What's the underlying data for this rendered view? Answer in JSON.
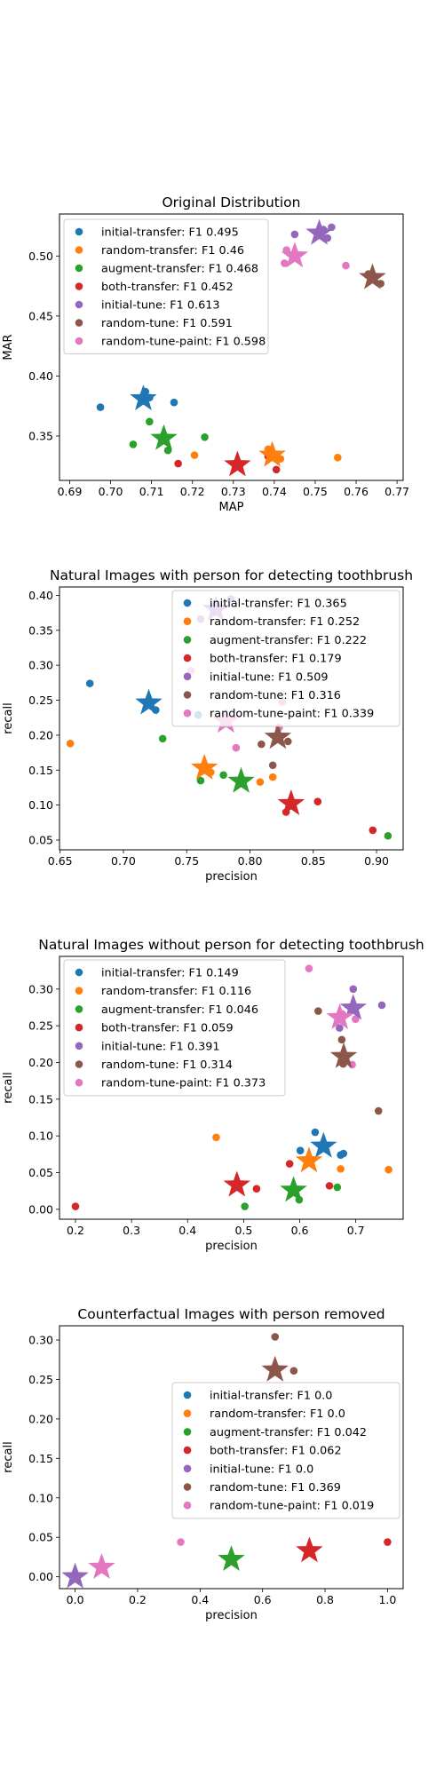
{
  "colors": {
    "initial-transfer": "#1f77b4",
    "random-transfer": "#ff7f0e",
    "augment-transfer": "#2ca02c",
    "both-transfer": "#d62728",
    "initial-tune": "#9467bd",
    "random-tune": "#8c564b",
    "random-tune-paint": "#e377c2"
  },
  "chart_data": [
    {
      "type": "scatter",
      "title": "Original Distribution",
      "xlabel": "MAP",
      "ylabel": "MAR",
      "xlim": [
        0.6875,
        0.7715
      ],
      "ylim": [
        0.313,
        0.535
      ],
      "xticks": [
        "0.69",
        "0.70",
        "0.71",
        "0.72",
        "0.73",
        "0.74",
        "0.75",
        "0.76",
        "0.77"
      ],
      "xtick_values": [
        0.69,
        0.7,
        0.71,
        0.72,
        0.73,
        0.74,
        0.75,
        0.76,
        0.77
      ],
      "yticks": [
        "0.35",
        "0.40",
        "0.45",
        "0.50"
      ],
      "ytick_values": [
        0.35,
        0.4,
        0.45,
        0.5
      ],
      "legend_position": "upper-left",
      "series": [
        {
          "name": "initial-transfer",
          "legend": "initial-transfer: F1 0.495",
          "points": [
            [
              0.6975,
              0.374
            ],
            [
              0.7085,
              0.387
            ],
            [
              0.7095,
              0.382
            ],
            [
              0.7155,
              0.378
            ]
          ],
          "star": [
            0.708,
            0.381
          ]
        },
        {
          "name": "random-transfer",
          "legend": "random-transfer: F1 0.46",
          "points": [
            [
              0.7205,
              0.334
            ],
            [
              0.7385,
              0.339
            ],
            [
              0.7415,
              0.331
            ],
            [
              0.7555,
              0.332
            ]
          ],
          "star": [
            0.7395,
            0.334
          ]
        },
        {
          "name": "augment-transfer",
          "legend": "augment-transfer: F1 0.468",
          "points": [
            [
              0.7055,
              0.343
            ],
            [
              0.7095,
              0.362
            ],
            [
              0.714,
              0.338
            ],
            [
              0.723,
              0.349
            ]
          ],
          "star": [
            0.713,
            0.348
          ]
        },
        {
          "name": "both-transfer",
          "legend": "both-transfer: F1 0.452",
          "points": [
            [
              0.7165,
              0.327
            ],
            [
              0.7385,
              0.333
            ],
            [
              0.7405,
              0.322
            ]
          ],
          "star": [
            0.731,
            0.326
          ]
        },
        {
          "name": "initial-tune",
          "legend": "initial-tune: F1 0.613",
          "points": [
            [
              0.745,
              0.518
            ],
            [
              0.752,
              0.522
            ],
            [
              0.753,
              0.515
            ],
            [
              0.754,
              0.524
            ]
          ],
          "star": [
            0.751,
            0.519
          ]
        },
        {
          "name": "random-tune",
          "legend": "random-tune: F1 0.591",
          "points": [
            [
              0.763,
              0.485
            ],
            [
              0.766,
              0.477
            ]
          ],
          "star": [
            0.764,
            0.482
          ]
        },
        {
          "name": "random-tune-paint",
          "legend": "random-tune-paint: F1 0.598",
          "points": [
            [
              0.7425,
              0.494
            ],
            [
              0.743,
              0.505
            ],
            [
              0.7575,
              0.492
            ]
          ],
          "star": [
            0.745,
            0.5
          ]
        }
      ]
    },
    {
      "type": "scatter",
      "title": "Natural Images with person for detecting toothbrush",
      "xlabel": "precision",
      "ylabel": "recall",
      "xlim": [
        0.6495,
        0.921
      ],
      "ylim": [
        0.036,
        0.412
      ],
      "xticks": [
        "0.65",
        "0.70",
        "0.75",
        "0.80",
        "0.85",
        "0.90"
      ],
      "xtick_values": [
        0.65,
        0.7,
        0.75,
        0.8,
        0.85,
        0.9
      ],
      "yticks": [
        "0.05",
        "0.10",
        "0.15",
        "0.20",
        "0.25",
        "0.30",
        "0.35",
        "0.40"
      ],
      "ytick_values": [
        0.05,
        0.1,
        0.15,
        0.2,
        0.25,
        0.3,
        0.35,
        0.4
      ],
      "legend_position": "upper-right",
      "series": [
        {
          "name": "initial-transfer",
          "legend": "initial-transfer: F1 0.365",
          "points": [
            [
              0.6735,
              0.274
            ],
            [
              0.7255,
              0.236
            ],
            [
              0.759,
              0.229
            ]
          ],
          "star": [
            0.72,
            0.246
          ]
        },
        {
          "name": "random-transfer",
          "legend": "random-transfer: F1 0.252",
          "points": [
            [
              0.658,
              0.188
            ],
            [
              0.769,
              0.147
            ],
            [
              0.808,
              0.133
            ],
            [
              0.818,
              0.14
            ]
          ],
          "star": [
            0.764,
            0.153
          ]
        },
        {
          "name": "augment-transfer",
          "legend": "augment-transfer: F1 0.222",
          "points": [
            [
              0.731,
              0.195
            ],
            [
              0.761,
              0.135
            ],
            [
              0.779,
              0.143
            ],
            [
              0.909,
              0.056
            ]
          ],
          "star": [
            0.793,
            0.134
          ]
        },
        {
          "name": "both-transfer",
          "legend": "both-transfer: F1 0.179",
          "points": [
            [
              0.8285,
              0.09
            ],
            [
              0.8535,
              0.105
            ],
            [
              0.897,
              0.064
            ]
          ],
          "star": [
            0.8325,
            0.102
          ]
        },
        {
          "name": "initial-tune",
          "legend": "initial-tune: F1 0.509",
          "points": [
            [
              0.761,
              0.366
            ],
            [
              0.775,
              0.38
            ],
            [
              0.785,
              0.395
            ]
          ],
          "star": [
            0.773,
            0.38
          ]
        },
        {
          "name": "random-tune",
          "legend": "random-tune: F1 0.316",
          "points": [
            [
              0.809,
              0.187
            ],
            [
              0.818,
              0.157
            ],
            [
              0.83,
              0.191
            ]
          ],
          "star": [
            0.822,
            0.197
          ]
        },
        {
          "name": "random-tune-paint",
          "legend": "random-tune-paint: F1 0.339",
          "points": [
            [
              0.7535,
              0.292
            ],
            [
              0.789,
              0.182
            ],
            [
              0.823,
              0.211
            ],
            [
              0.8255,
              0.247
            ]
          ],
          "star": [
            0.781,
            0.22
          ]
        }
      ]
    },
    {
      "type": "scatter",
      "title": "Natural Images without person for detecting toothbrush",
      "xlabel": "precision",
      "ylabel": "recall",
      "xlim": [
        0.1715,
        0.7845
      ],
      "ylim": [
        -0.0135,
        0.3445
      ],
      "xticks": [
        "0.2",
        "0.3",
        "0.4",
        "0.5",
        "0.6",
        "0.7"
      ],
      "xtick_values": [
        0.2,
        0.3,
        0.4,
        0.5,
        0.6,
        0.7
      ],
      "yticks": [
        "0.00",
        "0.05",
        "0.10",
        "0.15",
        "0.20",
        "0.25",
        "0.30"
      ],
      "ytick_values": [
        0.0,
        0.05,
        0.1,
        0.15,
        0.2,
        0.25,
        0.3
      ],
      "legend_position": "upper-left",
      "series": [
        {
          "name": "initial-transfer",
          "legend": "initial-transfer: F1 0.149",
          "points": [
            [
              0.601,
              0.08
            ],
            [
              0.6275,
              0.105
            ],
            [
              0.673,
              0.074
            ],
            [
              0.678,
              0.076
            ]
          ],
          "star": [
            0.6425,
            0.086
          ]
        },
        {
          "name": "random-transfer",
          "legend": "random-transfer: F1 0.116",
          "points": [
            [
              0.451,
              0.098
            ],
            [
              0.673,
              0.055
            ],
            [
              0.7585,
              0.054
            ]
          ],
          "star": [
            0.6165,
            0.066
          ]
        },
        {
          "name": "augment-transfer",
          "legend": "augment-transfer: F1 0.046",
          "points": [
            [
              0.502,
              0.004
            ],
            [
              0.599,
              0.013
            ],
            [
              0.667,
              0.03
            ]
          ],
          "star": [
            0.589,
            0.026
          ]
        },
        {
          "name": "both-transfer",
          "legend": "both-transfer: F1 0.059",
          "points": [
            [
              0.2,
              0.004
            ],
            [
              0.523,
              0.028
            ],
            [
              0.582,
              0.062
            ],
            [
              0.653,
              0.032
            ]
          ],
          "star": [
            0.488,
            0.033
          ]
        },
        {
          "name": "initial-tune",
          "legend": "initial-tune: F1 0.391",
          "points": [
            [
              0.671,
              0.247
            ],
            [
              0.6955,
              0.3
            ],
            [
              0.7465,
              0.278
            ]
          ],
          "star": [
            0.6955,
            0.274
          ]
        },
        {
          "name": "random-tune",
          "legend": "random-tune: F1 0.314",
          "points": [
            [
              0.633,
              0.27
            ],
            [
              0.675,
              0.231
            ],
            [
              0.6775,
              0.198
            ],
            [
              0.7405,
              0.134
            ]
          ],
          "star": [
            0.6785,
            0.208
          ]
        },
        {
          "name": "random-tune-paint",
          "legend": "random-tune-paint: F1 0.373",
          "points": [
            [
              0.6165,
              0.328
            ],
            [
              0.676,
              0.266
            ],
            [
              0.6935,
              0.197
            ],
            [
              0.6995,
              0.259
            ]
          ],
          "star": [
            0.6715,
            0.261
          ]
        }
      ]
    },
    {
      "type": "scatter",
      "title": "Counterfactual Images with person removed",
      "xlabel": "precision",
      "ylabel": "recall",
      "xlim": [
        -0.05,
        1.05
      ],
      "ylim": [
        -0.015,
        0.318
      ],
      "xticks": [
        "0.0",
        "0.2",
        "0.4",
        "0.6",
        "0.8",
        "1.0"
      ],
      "xtick_values": [
        0.0,
        0.2,
        0.4,
        0.6,
        0.8,
        1.0
      ],
      "yticks": [
        "0.00",
        "0.05",
        "0.10",
        "0.15",
        "0.20",
        "0.25",
        "0.30"
      ],
      "ytick_values": [
        0.0,
        0.05,
        0.1,
        0.15,
        0.2,
        0.25,
        0.3
      ],
      "legend_position": "center-right",
      "series": [
        {
          "name": "initial-transfer",
          "legend": "initial-transfer: F1 0.0",
          "points": [],
          "star": null
        },
        {
          "name": "random-transfer",
          "legend": "random-transfer: F1 0.0",
          "points": [],
          "star": null
        },
        {
          "name": "augment-transfer",
          "legend": "augment-transfer: F1 0.042",
          "points": [],
          "star": [
            0.5,
            0.022
          ]
        },
        {
          "name": "both-transfer",
          "legend": "both-transfer: F1 0.062",
          "points": [
            [
              1.0,
              0.044
            ]
          ],
          "star": [
            0.75,
            0.033
          ]
        },
        {
          "name": "initial-tune",
          "legend": "initial-tune: F1 0.0",
          "points": [],
          "star": [
            0.0,
            0.0
          ]
        },
        {
          "name": "random-tune",
          "legend": "random-tune: F1 0.369",
          "points": [
            [
              0.64,
              0.304
            ],
            [
              0.7,
              0.261
            ]
          ],
          "star": [
            0.64,
            0.262
          ]
        },
        {
          "name": "random-tune-paint",
          "legend": "random-tune-paint: F1 0.019",
          "points": [
            [
              0.338,
              0.044
            ]
          ],
          "star": [
            0.085,
            0.012
          ]
        }
      ]
    }
  ]
}
